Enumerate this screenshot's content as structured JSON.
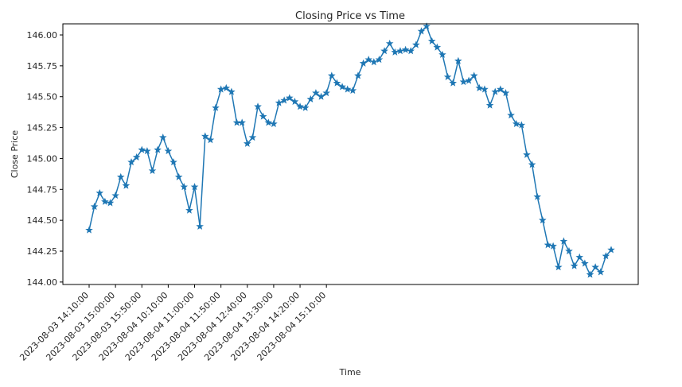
{
  "chart_data": {
    "type": "line",
    "title": "Closing Price vs Time",
    "xlabel": "Time",
    "ylabel": "Close Price",
    "marker": "star",
    "line_color": "#1f77b4",
    "grid": false,
    "ylim": [
      143.98,
      146.09
    ],
    "yticks": [
      "144.00",
      "144.25",
      "144.50",
      "144.75",
      "145.00",
      "145.25",
      "145.50",
      "145.75",
      "146.00"
    ],
    "xticks": [
      "2023-08-03 14:10:00",
      "2023-08-03 15:00:00",
      "2023-08-03 15:50:00",
      "2023-08-04 10:10:00",
      "2023-08-04 11:00:00",
      "2023-08-04 11:50:00",
      "2023-08-04 12:40:00",
      "2023-08-04 13:30:00",
      "2023-08-04 14:20:00",
      "2023-08-04 15:10:00"
    ],
    "series": [
      {
        "values": [
          144.42,
          144.61,
          144.72,
          144.65,
          144.64,
          144.7,
          144.85,
          144.78,
          144.97,
          145.01,
          145.07,
          145.06,
          144.9,
          145.07,
          145.17,
          145.06,
          144.97,
          144.85,
          144.77,
          144.58,
          144.77,
          144.45,
          145.18,
          145.15,
          145.41,
          145.56,
          145.57,
          145.54,
          145.29,
          145.29,
          145.12,
          145.17,
          145.42,
          145.34,
          145.29,
          145.28,
          145.45,
          145.47,
          145.49,
          145.46,
          145.42,
          145.41,
          145.48,
          145.53,
          145.5,
          145.53,
          145.67,
          145.61,
          145.58,
          145.56,
          145.55,
          145.67,
          145.77,
          145.8,
          145.78,
          145.8,
          145.87,
          145.93,
          145.86,
          145.87,
          145.88,
          145.87,
          145.92,
          146.03,
          146.07,
          145.95,
          145.9,
          145.84,
          145.66,
          145.61,
          145.79,
          145.62,
          145.63,
          145.67,
          145.57,
          145.56,
          145.43,
          145.54,
          145.56,
          145.53,
          145.35,
          145.28,
          145.27,
          145.03,
          144.95,
          144.69,
          144.5,
          144.3,
          144.29,
          144.12,
          144.33,
          144.25,
          144.13,
          144.2,
          144.15,
          144.06,
          144.12,
          144.08,
          144.21,
          144.26
        ]
      }
    ]
  }
}
